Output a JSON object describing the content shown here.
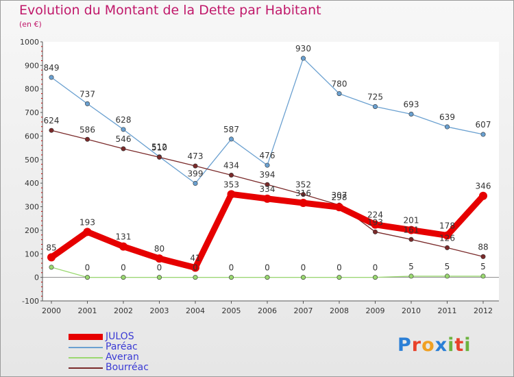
{
  "title": "Evolution du Montant de la Dette par Habitant",
  "subtitle": "(en €)",
  "logo": {
    "letters": [
      "P",
      "r",
      "o",
      "x",
      "i",
      "t",
      "i"
    ],
    "colors": [
      "#2b7fd6",
      "#e8412a",
      "#f0a023",
      "#2b7fd6",
      "#6cb33f",
      "#e8412a",
      "#6cb33f"
    ]
  },
  "chart_data": {
    "type": "line",
    "x": [
      "2000",
      "2001",
      "2002",
      "2003",
      "2004",
      "2005",
      "2006",
      "2007",
      "2008",
      "2009",
      "2010",
      "2011",
      "2012"
    ],
    "ylim": [
      -100,
      1000
    ],
    "yticks": [
      "-100",
      "0",
      "100",
      "200",
      "300",
      "400",
      "500",
      "600",
      "700",
      "800",
      "900",
      "1000"
    ],
    "grid": false,
    "legend_placement": "bottom-left",
    "series": [
      {
        "name": "JULOS",
        "color": "#e60000",
        "values": [
          85,
          193,
          131,
          80,
          41,
          353,
          334,
          316,
          298,
          224,
          201,
          178,
          346
        ],
        "labels": [
          "85",
          "193",
          "131",
          "80",
          "41",
          "353",
          "334",
          "316",
          "298",
          "224",
          "201",
          "178",
          "346"
        ]
      },
      {
        "name": "Paréac",
        "color": "#6aa0d0",
        "values": [
          849,
          737,
          628,
          512,
          399,
          587,
          476,
          930,
          780,
          725,
          693,
          639,
          607
        ],
        "labels": [
          "849",
          "737",
          "628",
          "512",
          "399",
          "587",
          "476",
          "930",
          "780",
          "725",
          "693",
          "639",
          "607"
        ]
      },
      {
        "name": "Averan",
        "color": "#9ad870",
        "values": [
          43,
          0,
          0,
          0,
          0,
          0,
          0,
          0,
          0,
          0,
          5,
          5,
          5
        ],
        "labels": [
          "43",
          "0",
          "0",
          "0",
          "0",
          "0",
          "0",
          "0",
          "0",
          "0",
          "5",
          "5",
          "5"
        ]
      },
      {
        "name": "Bourréac",
        "color": "#7a2a2a",
        "values": [
          624,
          586,
          546,
          510,
          473,
          434,
          394,
          352,
          307,
          193,
          161,
          126,
          88
        ],
        "labels": [
          "624",
          "586",
          "546",
          "510",
          "473",
          "434",
          "394",
          "352",
          "307",
          "193",
          "161",
          "126",
          "88"
        ]
      }
    ]
  }
}
